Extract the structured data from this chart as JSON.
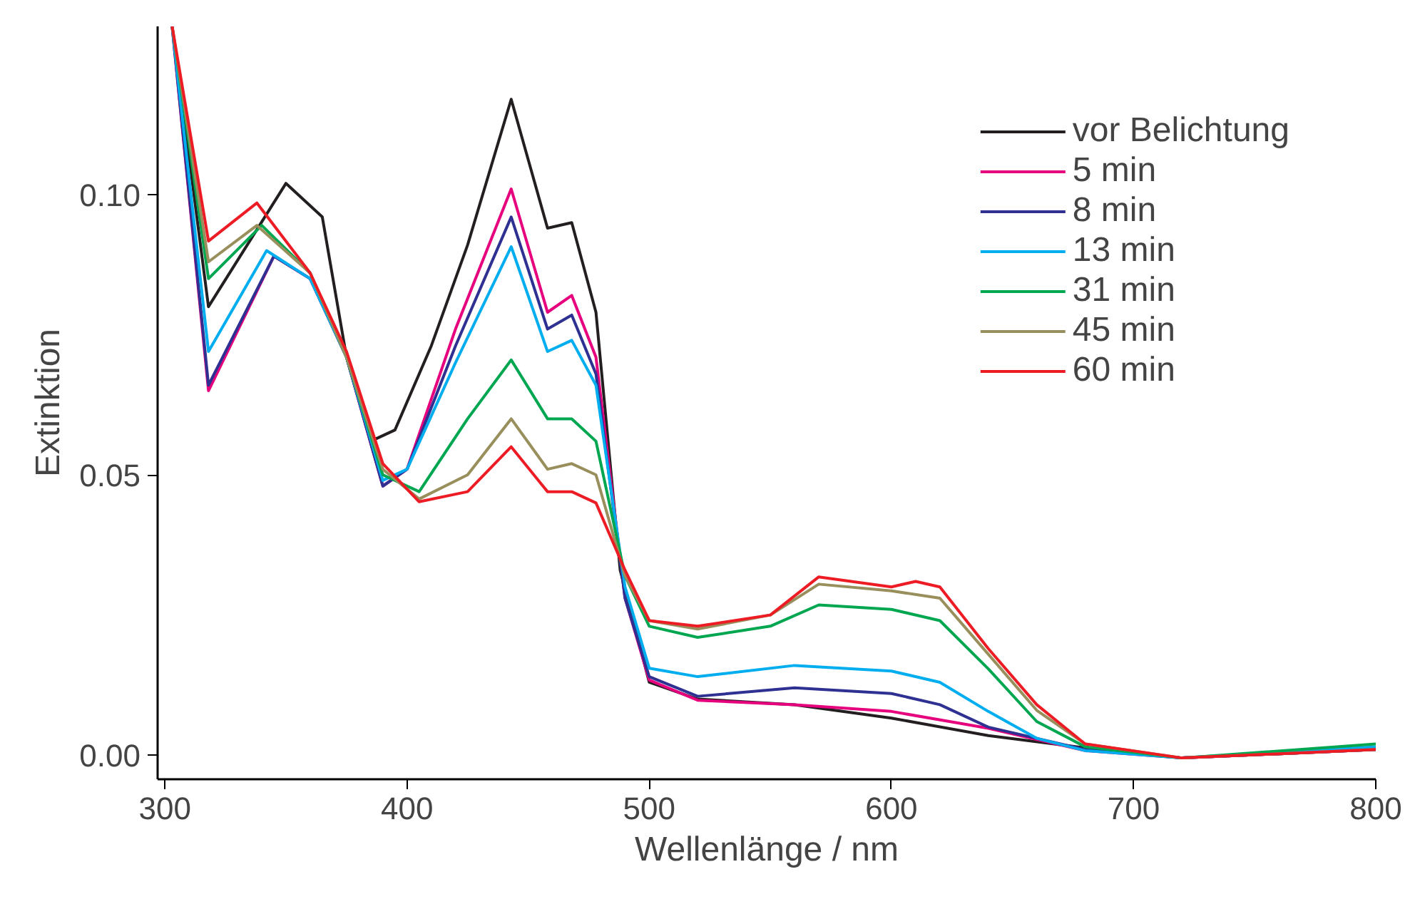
{
  "chart_data": {
    "type": "line",
    "xlabel": "Wellenlänge / nm",
    "ylabel": "Extinktion",
    "xlim": [
      297,
      800
    ],
    "ylim": [
      -0.0043,
      0.13
    ],
    "xticks": [
      300,
      400,
      500,
      600,
      700,
      800
    ],
    "yticks": [
      {
        "value": 0,
        "label": "0.00"
      },
      {
        "value": 0.05,
        "label": "0.05"
      },
      {
        "value": 0.1,
        "label": "0.10"
      }
    ],
    "grid": false,
    "legend": "top right",
    "line_style": "solid",
    "marker": "none",
    "series": [
      {
        "name": "vor Belichtung",
        "color": "#231f20",
        "x": [
          303,
          318,
          350,
          365,
          375,
          385,
          395,
          410,
          425,
          443,
          458,
          468,
          478,
          488,
          500,
          520,
          560,
          600,
          640,
          680,
          720,
          800
        ],
        "values": [
          0.13,
          0.08,
          0.102,
          0.096,
          0.071,
          0.056,
          0.058,
          0.073,
          0.091,
          0.117,
          0.094,
          0.095,
          0.079,
          0.033,
          0.013,
          0.01,
          0.009,
          0.0066,
          0.0035,
          0.0013,
          -0.0005,
          0.001
        ]
      },
      {
        "name": "5 min",
        "color": "#e6007e",
        "x": [
          303,
          318,
          345,
          360,
          375,
          390,
          400,
          420,
          443,
          458,
          468,
          478,
          490,
          500,
          520,
          560,
          600,
          640,
          680,
          720,
          800
        ],
        "values": [
          0.13,
          0.065,
          0.089,
          0.085,
          0.071,
          0.048,
          0.051,
          0.076,
          0.101,
          0.079,
          0.082,
          0.071,
          0.028,
          0.0134,
          0.0098,
          0.009,
          0.0078,
          0.0048,
          0.0008,
          -0.0005,
          0.001
        ]
      },
      {
        "name": "8 min",
        "color": "#2e3192",
        "x": [
          303,
          318,
          345,
          360,
          375,
          390,
          400,
          420,
          443,
          458,
          468,
          478,
          490,
          500,
          520,
          560,
          600,
          620,
          640,
          680,
          720,
          800
        ],
        "values": [
          0.13,
          0.066,
          0.089,
          0.085,
          0.071,
          0.048,
          0.051,
          0.073,
          0.096,
          0.076,
          0.0785,
          0.068,
          0.028,
          0.014,
          0.0105,
          0.012,
          0.011,
          0.009,
          0.005,
          0.001,
          -0.0005,
          0.001
        ]
      },
      {
        "name": "13 min",
        "color": "#00aeef",
        "x": [
          303,
          318,
          342,
          360,
          375,
          390,
          400,
          420,
          443,
          458,
          468,
          478,
          490,
          500,
          520,
          560,
          600,
          620,
          640,
          660,
          680,
          720,
          800
        ],
        "values": [
          0.13,
          0.072,
          0.09,
          0.085,
          0.071,
          0.049,
          0.051,
          0.07,
          0.0907,
          0.072,
          0.074,
          0.066,
          0.03,
          0.0155,
          0.014,
          0.016,
          0.015,
          0.013,
          0.0078,
          0.003,
          0.0008,
          -0.0005,
          0.0015
        ]
      },
      {
        "name": "31 min",
        "color": "#00a650",
        "x": [
          303,
          318,
          340,
          360,
          375,
          390,
          405,
          425,
          443,
          458,
          468,
          478,
          490,
          500,
          520,
          550,
          570,
          600,
          620,
          640,
          660,
          680,
          720,
          800
        ],
        "values": [
          0.13,
          0.085,
          0.0945,
          0.086,
          0.071,
          0.05,
          0.047,
          0.06,
          0.0705,
          0.06,
          0.06,
          0.056,
          0.032,
          0.023,
          0.021,
          0.023,
          0.0268,
          0.026,
          0.024,
          0.0154,
          0.006,
          0.0015,
          -0.0005,
          0.002
        ]
      },
      {
        "name": "45 min",
        "color": "#998f5c",
        "x": [
          303,
          318,
          338,
          360,
          375,
          390,
          405,
          425,
          443,
          458,
          468,
          478,
          490,
          500,
          520,
          550,
          570,
          600,
          620,
          640,
          660,
          680,
          720,
          800
        ],
        "values": [
          0.13,
          0.088,
          0.0945,
          0.086,
          0.071,
          0.051,
          0.0457,
          0.05,
          0.06,
          0.051,
          0.052,
          0.05,
          0.032,
          0.024,
          0.0225,
          0.025,
          0.0305,
          0.0293,
          0.028,
          0.018,
          0.008,
          0.002,
          -0.0005,
          0.001
        ]
      },
      {
        "name": "60 min",
        "color": "#ed1c24",
        "x": [
          303,
          318,
          338,
          360,
          375,
          390,
          405,
          425,
          443,
          458,
          468,
          478,
          490,
          500,
          520,
          550,
          570,
          600,
          610,
          620,
          640,
          660,
          680,
          720,
          800
        ],
        "values": [
          0.13,
          0.0917,
          0.0985,
          0.086,
          0.072,
          0.052,
          0.0452,
          0.047,
          0.055,
          0.047,
          0.047,
          0.045,
          0.033,
          0.024,
          0.023,
          0.025,
          0.0318,
          0.03,
          0.031,
          0.03,
          0.019,
          0.009,
          0.002,
          -0.0005,
          0.001
        ]
      }
    ]
  }
}
